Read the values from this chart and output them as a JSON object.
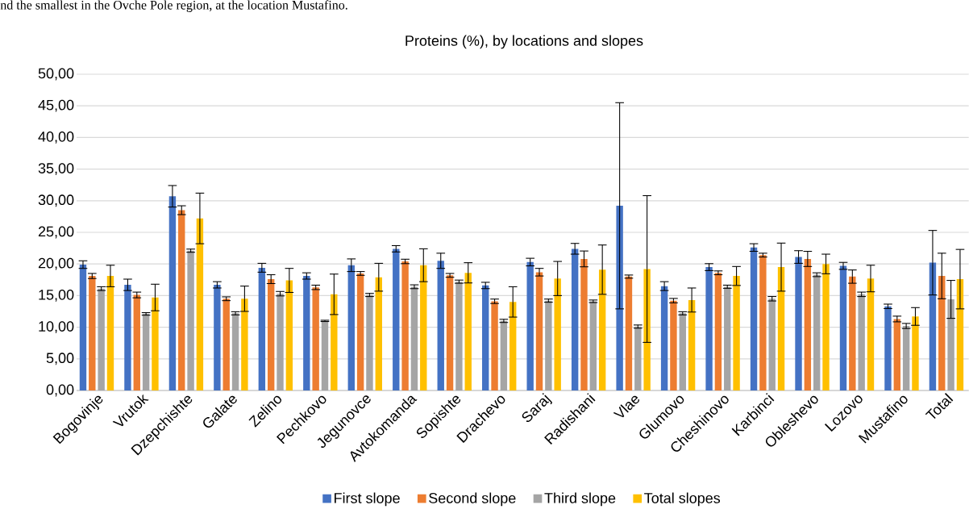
{
  "chart_data": {
    "type": "bar",
    "title": "Proteins (%), by locations and slopes",
    "annotations": [
      "nd the smallest in the Ovche Pole region, at the location Mustafino."
    ],
    "categories": [
      "Bogovinje",
      "Vrutok",
      "Dzepchishte",
      "Galate",
      "Zelino",
      "Pechkovo",
      "Jegunovce",
      "Avtokomanda",
      "Sopishte",
      "Drachevo",
      "Saraj",
      "Radishani",
      "Vlae",
      "Glumovo",
      "Cheshinovo",
      "Karbinci",
      "Obleshevo",
      "Lozovo",
      "Mustafino",
      "Total"
    ],
    "series": [
      {
        "name": "First slope",
        "color": "#4472c4",
        "values": [
          19.9,
          16.7,
          30.7,
          16.7,
          19.4,
          18.1,
          19.8,
          22.4,
          20.5,
          16.6,
          20.3,
          22.4,
          29.2,
          16.5,
          19.5,
          22.6,
          21.1,
          19.7,
          13.3,
          20.2
        ],
        "errors": [
          0.6,
          0.9,
          1.7,
          0.5,
          0.7,
          0.5,
          1.0,
          0.5,
          1.2,
          0.5,
          0.6,
          0.85,
          16.3,
          0.7,
          0.55,
          0.6,
          1.0,
          0.55,
          0.35,
          5.1
        ]
      },
      {
        "name": "Second slope",
        "color": "#ed7d31",
        "values": [
          18.1,
          15.1,
          28.5,
          14.5,
          17.6,
          16.3,
          18.5,
          20.4,
          18.2,
          14.1,
          18.7,
          20.8,
          18.0,
          14.2,
          18.6,
          21.4,
          20.8,
          18.0,
          11.3,
          18.1
        ],
        "errors": [
          0.4,
          0.45,
          0.7,
          0.3,
          0.7,
          0.35,
          0.3,
          0.35,
          0.3,
          0.35,
          0.6,
          1.25,
          0.25,
          0.35,
          0.3,
          0.3,
          1.2,
          1.05,
          0.45,
          3.6
        ]
      },
      {
        "name": "Third slope",
        "color": "#a5a5a5",
        "values": [
          16.1,
          12.1,
          22.1,
          12.2,
          15.3,
          11.0,
          15.1,
          16.4,
          17.2,
          11.0,
          14.2,
          14.1,
          10.1,
          12.2,
          16.4,
          14.5,
          18.3,
          15.2,
          10.2,
          14.4
        ],
        "errors": [
          0.3,
          0.2,
          0.25,
          0.25,
          0.35,
          0.1,
          0.25,
          0.3,
          0.25,
          0.25,
          0.25,
          0.2,
          0.25,
          0.25,
          0.25,
          0.35,
          0.3,
          0.35,
          0.4,
          3.0
        ]
      },
      {
        "name": "Total slopes",
        "color": "#ffc000",
        "values": [
          18.1,
          14.7,
          27.2,
          14.5,
          17.4,
          15.2,
          17.9,
          19.8,
          18.6,
          14.0,
          17.7,
          19.1,
          19.2,
          14.3,
          18.1,
          19.5,
          20.0,
          17.7,
          11.7,
          17.6
        ],
        "errors": [
          1.7,
          2.1,
          4.0,
          2.0,
          1.9,
          3.2,
          2.2,
          2.6,
          1.6,
          2.4,
          2.7,
          3.9,
          11.6,
          1.9,
          1.5,
          3.8,
          1.55,
          2.1,
          1.4,
          4.7
        ]
      }
    ],
    "ylim": [
      0,
      50
    ],
    "yticks": [
      {
        "value": 0,
        "label": "0,00"
      },
      {
        "value": 5,
        "label": "5,00"
      },
      {
        "value": 10,
        "label": "10,00"
      },
      {
        "value": 15,
        "label": "15,00"
      },
      {
        "value": 20,
        "label": "20,00"
      },
      {
        "value": 25,
        "label": "25,00"
      },
      {
        "value": 30,
        "label": "30,00"
      },
      {
        "value": 35,
        "label": "35,00"
      },
      {
        "value": 40,
        "label": "40,00"
      },
      {
        "value": 45,
        "label": "45,00"
      },
      {
        "value": 50,
        "label": "50,00"
      }
    ],
    "grid": "y",
    "legend": "bottom"
  }
}
